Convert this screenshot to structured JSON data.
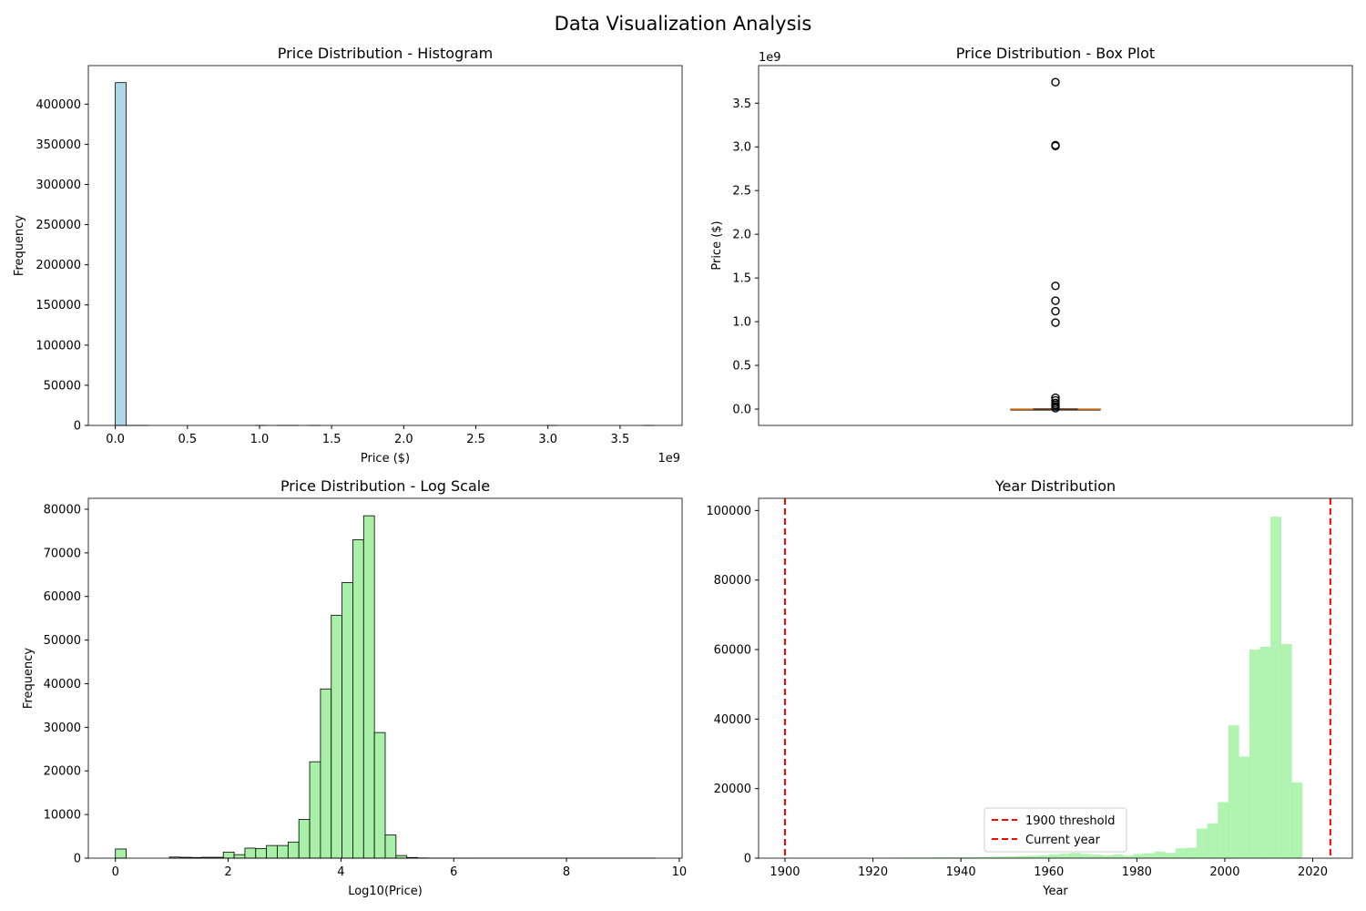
{
  "figure": {
    "title": "Data Visualization Analysis"
  },
  "chart_data": [
    {
      "type": "bar",
      "title": "Price Distribution - Histogram",
      "xlabel": "Price ($)",
      "ylabel": "Frequency",
      "x_offset_label": "1e9",
      "xlim": [
        -0.187,
        3.93
      ],
      "ylim": [
        0,
        448000
      ],
      "x_ticks": [
        0,
        0.5,
        1.0,
        1.5,
        2.0,
        2.5,
        3.0,
        3.5
      ],
      "x_tick_labels": [
        "0.0",
        "0.5",
        "1.0",
        "1.5",
        "2.0",
        "2.5",
        "3.0",
        "3.5"
      ],
      "y_ticks": [
        0,
        50000,
        100000,
        150000,
        200000,
        250000,
        300000,
        350000,
        400000
      ],
      "bin_width": 0.0747,
      "bins": [
        {
          "x": 0.0,
          "count": 426800
        },
        {
          "x": 0.0747,
          "count": 25
        },
        {
          "x": 0.1494,
          "count": 4
        },
        {
          "x": 0.9711,
          "count": 1
        },
        {
          "x": 1.1205,
          "count": 2
        },
        {
          "x": 1.1952,
          "count": 1
        },
        {
          "x": 1.3446,
          "count": 1
        },
        {
          "x": 2.988,
          "count": 2
        },
        {
          "x": 3.6603,
          "count": 1
        }
      ],
      "fill": "#ADD8E6",
      "edge": "#000000",
      "grid": false
    },
    {
      "type": "box",
      "title": "Price Distribution - Box Plot",
      "ylabel": "Price ($)",
      "y_offset_label": "1e9",
      "ylim": [
        -0.187,
        3.93
      ],
      "y_ticks": [
        0,
        0.5,
        1.0,
        1.5,
        2.0,
        2.5,
        3.0,
        3.5
      ],
      "y_tick_labels": [
        "0.0",
        "0.5",
        "1.0",
        "1.5",
        "2.0",
        "2.5",
        "3.0",
        "3.5"
      ],
      "box": {
        "q1": 0.0,
        "median": 0.0,
        "q3": 0.0,
        "whisker_low": 0.0,
        "whisker_high": 0.0
      },
      "outliers": [
        3.74,
        3.02,
        3.01,
        1.41,
        1.24,
        1.12,
        0.99,
        0.13,
        0.1,
        0.07,
        0.05,
        0.03,
        0.01
      ],
      "median_color": "#E67E22",
      "grid": false
    },
    {
      "type": "bar",
      "title": "Price Distribution - Log Scale",
      "xlabel": "Log10(Price)",
      "ylabel": "Frequency",
      "xlim": [
        -0.48,
        10.05
      ],
      "ylim": [
        0,
        82500
      ],
      "x_ticks": [
        0,
        2,
        4,
        6,
        8,
        10
      ],
      "y_ticks": [
        0,
        10000,
        20000,
        30000,
        40000,
        50000,
        60000,
        70000,
        80000
      ],
      "bin_width": 0.1914,
      "bin_start": 0,
      "counts": [
        2100,
        0,
        0,
        0,
        0,
        250,
        200,
        150,
        200,
        200,
        1400,
        800,
        2300,
        2200,
        2900,
        2900,
        3700,
        8900,
        22100,
        38800,
        55700,
        63200,
        73000,
        78500,
        28800,
        5300,
        600,
        150,
        50,
        20,
        10,
        5,
        5,
        2,
        1,
        1,
        1,
        1,
        1,
        1,
        1,
        1,
        1,
        1,
        1,
        1,
        1,
        1,
        1,
        1
      ],
      "fill": "#A8EFA8",
      "edge": "#000000",
      "grid": false
    },
    {
      "type": "bar",
      "title": "Year Distribution",
      "xlabel": "Year",
      "xlim": [
        1894,
        2029
      ],
      "ylim": [
        0,
        103500
      ],
      "x_ticks": [
        1900,
        1920,
        1940,
        1960,
        1980,
        2000,
        2020
      ],
      "y_ticks": [
        0,
        20000,
        40000,
        60000,
        80000,
        100000
      ],
      "bin_width": 2.4,
      "bin_start": 1900,
      "counts": [
        50,
        20,
        20,
        20,
        20,
        30,
        30,
        40,
        40,
        80,
        150,
        200,
        200,
        200,
        250,
        250,
        300,
        300,
        350,
        400,
        450,
        500,
        600,
        700,
        800,
        1100,
        1300,
        1500,
        1200,
        1000,
        800,
        1100,
        700,
        1200,
        1400,
        1900,
        1500,
        2800,
        3000,
        8500,
        10000,
        16100,
        38200,
        29200,
        60000,
        60800,
        98200,
        61600,
        21800,
        0
      ],
      "fill": "#90EE90",
      "fill_opacity": 0.7,
      "vlines": [
        {
          "x": 1900,
          "label": "1900 threshold",
          "color": "#FF0000"
        },
        {
          "x": 2024,
          "label": "Current year",
          "color": "#FF0000"
        }
      ],
      "legend_position": "lower-center",
      "grid": false
    }
  ]
}
